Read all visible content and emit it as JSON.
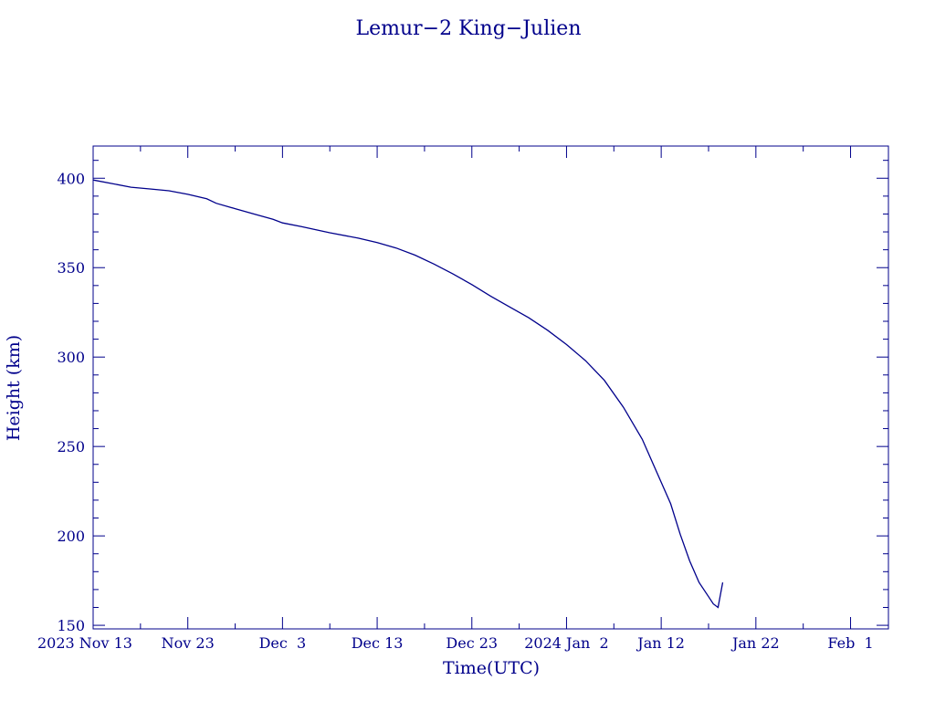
{
  "chart_data": {
    "type": "line",
    "title": "Lemur−2 King−Julien",
    "xlabel": "Time(UTC)",
    "ylabel": "Height (km)",
    "x_tick_labels": [
      "2023 Nov 13",
      "Nov 23",
      "Dec  3",
      "Dec 13",
      "Dec 23",
      "2024 Jan  2",
      "Jan 12",
      "Jan 22",
      "Feb  1"
    ],
    "xlim": [
      "2023-11-13",
      "2024-02-05"
    ],
    "ylim": [
      148,
      418
    ],
    "y_ticks": [
      150,
      200,
      250,
      300,
      350,
      400
    ],
    "y_minor_step": 10,
    "grid": false,
    "series": [
      {
        "x": [
          "2023-11-13",
          "2023-11-15",
          "2023-11-17",
          "2023-11-19",
          "2023-11-21",
          "2023-11-23",
          "2023-11-25",
          "2023-11-26",
          "2023-11-28",
          "2023-11-30",
          "2023-12-02",
          "2023-12-03",
          "2023-12-05",
          "2023-12-08",
          "2023-12-11",
          "2023-12-13",
          "2023-12-15",
          "2023-12-17",
          "2023-12-19",
          "2023-12-21",
          "2023-12-23",
          "2023-12-25",
          "2023-12-27",
          "2023-12-29",
          "2023-12-31",
          "2024-01-02",
          "2024-01-04",
          "2024-01-06",
          "2024-01-08",
          "2024-01-10",
          "2024-01-12",
          "2024-01-13",
          "2024-01-14",
          "2024-01-15",
          "2024-01-16",
          "2024-01-17",
          "2024-01-17T12:00",
          "2024-01-18",
          "2024-01-18T12:00"
        ],
        "y": [
          399,
          397,
          395,
          394,
          393,
          391,
          388.5,
          386,
          383,
          380,
          377,
          375,
          373,
          369.5,
          366.5,
          364,
          361,
          357,
          352,
          346.5,
          340.5,
          334,
          328,
          322,
          315,
          307,
          298,
          287,
          272,
          254,
          230,
          218,
          201,
          186,
          174,
          166,
          162,
          160,
          174
        ]
      }
    ]
  }
}
